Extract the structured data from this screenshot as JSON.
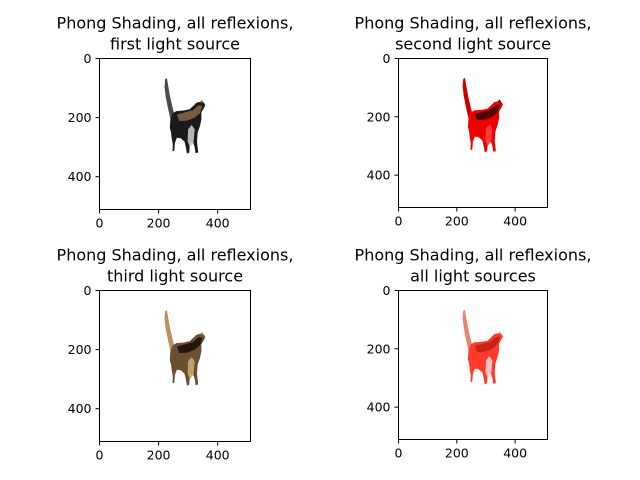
{
  "figure": {
    "background": "#ffffff"
  },
  "chart_data": [
    {
      "type": "image",
      "title_lines": [
        "Phong Shading, all reflexions,",
        "first light source"
      ],
      "xticks": [
        0,
        200,
        400
      ],
      "yticks": [
        0,
        200,
        400
      ],
      "xlim": [
        0,
        511
      ],
      "ylim": [
        511,
        0
      ],
      "image_content": "cat-render",
      "palette": {
        "body": "#1a1a1a",
        "patch_light": "#c8c8cc",
        "patch_warm": "#8a6a4a",
        "ear": "#7a5a3a",
        "tail": "#4a4a4a"
      }
    },
    {
      "type": "image",
      "title_lines": [
        "Phong Shading, all reflexions,",
        "second light source"
      ],
      "xticks": [
        0,
        200,
        400
      ],
      "yticks": [
        0,
        200,
        400
      ],
      "xlim": [
        0,
        511
      ],
      "ylim": [
        511,
        0
      ],
      "image_content": "cat-render",
      "palette": {
        "body": "#ee0000",
        "patch_light": "#ff4040",
        "patch_warm": "#3a0000",
        "ear": "#5a0000",
        "tail": "#cc0000"
      }
    },
    {
      "type": "image",
      "title_lines": [
        "Phong Shading, all reflexions,",
        "third light source"
      ],
      "xticks": [
        0,
        200,
        400
      ],
      "yticks": [
        0,
        200,
        400
      ],
      "xlim": [
        0,
        511
      ],
      "ylim": [
        511,
        0
      ],
      "image_content": "cat-render",
      "palette": {
        "body": "#6a5030",
        "patch_light": "#c8a878",
        "patch_warm": "#120c06",
        "ear": "#a07850",
        "tail": "#b89060"
      }
    },
    {
      "type": "image",
      "title_lines": [
        "Phong Shading, all reflexions,",
        "all light sources"
      ],
      "xticks": [
        0,
        200,
        400
      ],
      "yticks": [
        0,
        200,
        400
      ],
      "xlim": [
        0,
        511
      ],
      "ylim": [
        511,
        0
      ],
      "image_content": "cat-render",
      "palette": {
        "body": "#ff3a2a",
        "patch_light": "#ffd0d0",
        "patch_warm": "#c02010",
        "ear": "#e08060",
        "tail": "#f08070"
      }
    }
  ]
}
